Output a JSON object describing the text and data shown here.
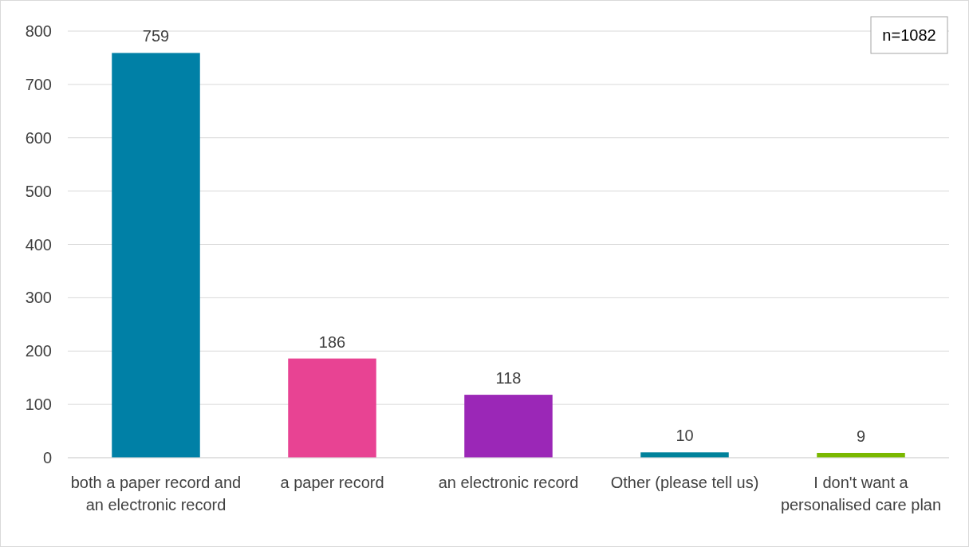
{
  "chart_data": {
    "type": "bar",
    "categories": [
      "both a paper record and an electronic record",
      "a paper record",
      "an electronic record",
      "Other (please tell us)",
      "I don't want a personalised care plan"
    ],
    "values": [
      759,
      186,
      118,
      10,
      9
    ],
    "colors": [
      "#0080a6",
      "#e84393",
      "#9b27b7",
      "#00829b",
      "#7ab800"
    ],
    "ylim": [
      0,
      800
    ],
    "yticks": [
      0,
      100,
      200,
      300,
      400,
      500,
      600,
      700,
      800
    ],
    "grid": "y",
    "data_labels": true,
    "annotations": [
      "n=1082"
    ]
  }
}
